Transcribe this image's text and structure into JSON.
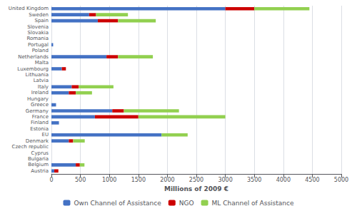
{
  "chart_data": {
    "type": "bar",
    "orientation": "horizontal",
    "stacked": true,
    "categories": [
      "United Kingdom",
      "Sweden",
      "Spain",
      "Slovenia",
      "Slovakia",
      "Romania",
      "Portugal",
      "Poland",
      "Netherlands",
      "Malta",
      "Luxembourg",
      "Lithuania",
      "Latvia",
      "Italy",
      "Ireland",
      "Hungary",
      "Greece",
      "Germany",
      "France",
      "Finland",
      "Estonia",
      "EU",
      "Denmark",
      "Czech republic",
      "Cyprus",
      "Bulgaria",
      "Belgium",
      "Austria"
    ],
    "series": [
      {
        "name": "Own Channel of Assistance",
        "color": "#4472C4",
        "values": [
          3000,
          650,
          800,
          0,
          0,
          0,
          30,
          0,
          950,
          0,
          180,
          0,
          0,
          350,
          300,
          0,
          80,
          1050,
          750,
          130,
          0,
          1900,
          300,
          0,
          0,
          0,
          420,
          50
        ]
      },
      {
        "name": "NGO",
        "color": "#CC0000",
        "values": [
          500,
          120,
          350,
          0,
          0,
          0,
          0,
          0,
          200,
          0,
          70,
          0,
          0,
          120,
          120,
          0,
          0,
          200,
          750,
          0,
          0,
          0,
          75,
          0,
          0,
          0,
          70,
          70
        ]
      },
      {
        "name": "ML Channel of Assistance",
        "color": "#92D050",
        "values": [
          950,
          550,
          650,
          0,
          0,
          0,
          0,
          0,
          600,
          0,
          0,
          0,
          0,
          600,
          280,
          0,
          0,
          950,
          1500,
          0,
          0,
          450,
          200,
          0,
          0,
          0,
          80,
          0
        ]
      }
    ],
    "xlabel": "Millions of 2009 €",
    "xlim": [
      0,
      5000
    ],
    "xticks": [
      0,
      500,
      1000,
      1500,
      2000,
      2500,
      3000,
      3500,
      4000,
      4500,
      5000
    ],
    "grid": true,
    "legend": "bottom"
  }
}
